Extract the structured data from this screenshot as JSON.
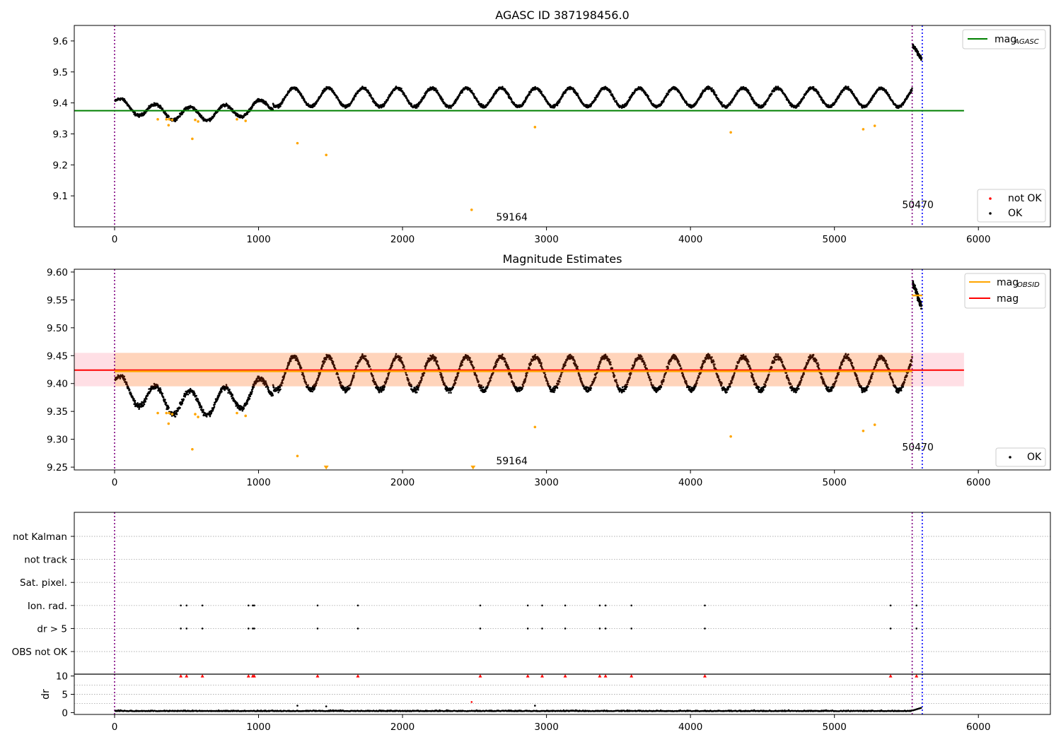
{
  "figure": {
    "width": 1500,
    "height": 1050
  },
  "chart_data": [
    {
      "type": "scatter",
      "id": "panel1",
      "title": "AGASC ID 387198456.0",
      "xlim": [
        -280,
        6500
      ],
      "ylim": [
        9.0,
        9.65
      ],
      "x_ticks": [
        0,
        1000,
        2000,
        3000,
        4000,
        5000,
        6000
      ],
      "y_ticks": [
        9.1,
        9.2,
        9.3,
        9.4,
        9.5,
        9.6
      ],
      "y_tick_labels": [
        "9.1",
        "9.2",
        "9.3",
        "9.4",
        "9.5",
        "9.6"
      ],
      "grid": false,
      "hlines": [
        {
          "name": "mag_AGASC",
          "y": 9.375,
          "x": [
            -280,
            5900
          ],
          "color": "#008000"
        }
      ],
      "vlines": [
        {
          "x": 0,
          "color": "#800080"
        },
        {
          "x": 5540,
          "color": "#800080"
        },
        {
          "x": 5610,
          "color": "#0000ff"
        }
      ],
      "annotations": [
        {
          "text": "59164",
          "x": 2650,
          "y": 9.02
        },
        {
          "text": "50470",
          "x": 5470,
          "y": 9.06
        }
      ],
      "outliers": {
        "x": [
          300,
          360,
          375,
          380,
          400,
          540,
          560,
          580,
          850,
          910,
          1270,
          1470,
          2480,
          2920,
          4280,
          5200,
          5280
        ],
        "y": [
          9.347,
          9.347,
          9.328,
          9.347,
          9.345,
          9.284,
          9.345,
          9.34,
          9.347,
          9.342,
          9.27,
          9.232,
          9.055,
          9.322,
          9.305,
          9.315,
          9.326
        ]
      },
      "legends": [
        {
          "position": "upper right",
          "entries": [
            {
              "label": "mag",
              "sub": "AGASC",
              "kind": "line",
              "color": "#008000"
            }
          ]
        },
        {
          "position": "lower right",
          "entries": [
            {
              "label": "not OK",
              "kind": "point",
              "color": "#ff0000"
            },
            {
              "label": "OK",
              "kind": "point",
              "color": "#000000"
            }
          ]
        }
      ]
    },
    {
      "type": "scatter",
      "id": "panel2",
      "title": "Magnitude Estimates",
      "xlim": [
        -280,
        6500
      ],
      "ylim": [
        9.245,
        9.605
      ],
      "x_ticks": [
        0,
        1000,
        2000,
        3000,
        4000,
        5000,
        6000
      ],
      "y_ticks": [
        9.25,
        9.3,
        9.35,
        9.4,
        9.45,
        9.5,
        9.55,
        9.6
      ],
      "y_tick_labels": [
        "9.25",
        "9.30",
        "9.35",
        "9.40",
        "9.45",
        "9.50",
        "9.55",
        "9.60"
      ],
      "grid": false,
      "band": {
        "y": [
          9.395,
          9.455
        ],
        "x": [
          -280,
          5900
        ],
        "color": "#ffc0cb"
      },
      "mag_line": {
        "y": 9.424,
        "x": [
          -280,
          5900
        ],
        "color": "#ff0000"
      },
      "obsid_segments": [
        {
          "x": [
            0,
            5540
          ],
          "y": 9.422,
          "color": "#ffa500"
        },
        {
          "x": [
            5540,
            5610
          ],
          "y": 9.558,
          "color": "#ffa500"
        }
      ],
      "vlines": [
        {
          "x": 0,
          "color": "#800080"
        },
        {
          "x": 5540,
          "color": "#800080"
        },
        {
          "x": 5610,
          "color": "#0000ff"
        }
      ],
      "annotations": [
        {
          "text": "59164",
          "x": 2650,
          "y": 9.255
        },
        {
          "text": "50470",
          "x": 5470,
          "y": 9.28
        }
      ],
      "outliers": {
        "x": [
          300,
          360,
          375,
          380,
          400,
          540,
          560,
          580,
          850,
          910,
          1270,
          2920,
          4280,
          5200,
          5280
        ],
        "y": [
          9.347,
          9.347,
          9.328,
          9.347,
          9.345,
          9.282,
          9.345,
          9.34,
          9.347,
          9.342,
          9.27,
          9.322,
          9.305,
          9.315,
          9.326
        ]
      },
      "outliers_low": {
        "x": [
          1470,
          2490
        ],
        "y": [
          9.249,
          9.249
        ]
      },
      "legends": [
        {
          "position": "upper right",
          "entries": [
            {
              "label": "mag",
              "sub": "OBSID",
              "kind": "line",
              "color": "#ffa500"
            },
            {
              "label": "mag",
              "kind": "line",
              "color": "#ff0000"
            }
          ]
        },
        {
          "position": "lower right",
          "entries": [
            {
              "label": "OK",
              "kind": "point",
              "color": "#000000"
            }
          ]
        }
      ]
    },
    {
      "type": "scatter",
      "id": "panel3",
      "xlim": [
        -280,
        6500
      ],
      "categories": [
        "not Kalman",
        "not track",
        "Sat. pixel.",
        "Ion. rad.",
        "dr > 5",
        "OBS not OK"
      ],
      "flag_x": [
        460,
        500,
        610,
        930,
        960,
        970,
        1410,
        1690,
        2540,
        2870,
        2970,
        3130,
        3370,
        3410,
        3590,
        4100,
        5390,
        5570
      ],
      "grid": true,
      "vlines": [
        {
          "x": 0,
          "color": "#800080"
        },
        {
          "x": 5540,
          "color": "#800080"
        },
        {
          "x": 5610,
          "color": "#0000ff"
        }
      ]
    },
    {
      "type": "scatter",
      "id": "panel4",
      "xlim": [
        -280,
        6500
      ],
      "ylim": [
        -0.5,
        10.5
      ],
      "ylabel": "dr",
      "x_ticks": [
        0,
        1000,
        2000,
        3000,
        4000,
        5000,
        6000
      ],
      "y_ticks": [
        0,
        5,
        10
      ],
      "y_tick_labels": [
        "0",
        "5",
        "10"
      ],
      "grid": true,
      "capped_markers": {
        "y": 10,
        "color": "#ff0000"
      },
      "spikes": {
        "x": [
          1270,
          1470,
          2480,
          2920
        ],
        "y": [
          1.9,
          1.7,
          2.9,
          1.9
        ]
      },
      "vlines": [
        {
          "x": 0,
          "color": "#800080"
        },
        {
          "x": 5540,
          "color": "#800080"
        },
        {
          "x": 5610,
          "color": "#0000ff"
        }
      ]
    }
  ]
}
